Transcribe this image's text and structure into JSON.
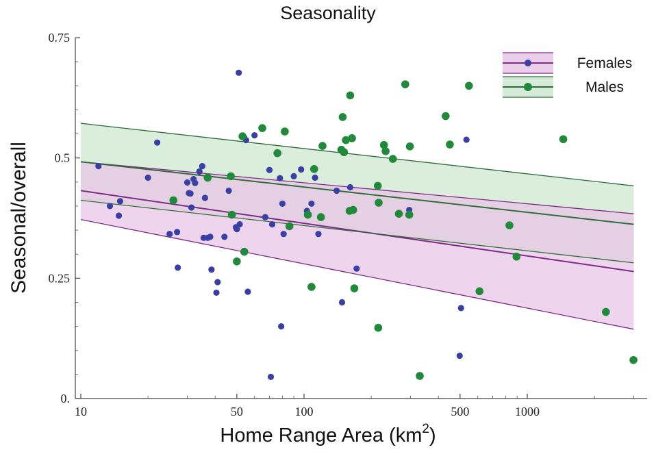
{
  "chart_data": {
    "type": "scatter",
    "title": "Seasonality",
    "xlabel": "Home Range Area (km",
    "xlabel_superscript": "2",
    "xlabel_suffix": ")",
    "ylabel": "Seasonal/overall",
    "xscale": "log",
    "xlim": [
      9,
      3000
    ],
    "ylim": [
      0,
      0.75
    ],
    "x_ticks": [
      10,
      50,
      100,
      500,
      1000
    ],
    "x_tick_labels": [
      "10",
      "50",
      "100",
      "500",
      "1000"
    ],
    "y_ticks": [
      0,
      0.25,
      0.5,
      0.75
    ],
    "y_tick_labels": [
      "0.",
      "0.25",
      "0.5",
      "0.75"
    ],
    "grid": false,
    "legend_position": "top-right",
    "series": [
      {
        "name": "Females",
        "color": "#3a3fa6",
        "line_color": "#7d2a86",
        "band_color": "#e8c6e6",
        "fit_x": [
          10,
          3000
        ],
        "fit_y": [
          0.432,
          0.264
        ],
        "band_upper": [
          0.492,
          0.384
        ],
        "band_lower": [
          0.372,
          0.144
        ],
        "points": [
          [
            12,
            0.483
          ],
          [
            13.5,
            0.4
          ],
          [
            14.8,
            0.38
          ],
          [
            15,
            0.41
          ],
          [
            20,
            0.459
          ],
          [
            22,
            0.532
          ],
          [
            25,
            0.342
          ],
          [
            27,
            0.346
          ],
          [
            27.2,
            0.272
          ],
          [
            30,
            0.449
          ],
          [
            30.5,
            0.427
          ],
          [
            31,
            0.426
          ],
          [
            31.3,
            0.397
          ],
          [
            32,
            0.456
          ],
          [
            32.5,
            0.448
          ],
          [
            34,
            0.472
          ],
          [
            35,
            0.483
          ],
          [
            35.5,
            0.334
          ],
          [
            36,
            0.417
          ],
          [
            37,
            0.334
          ],
          [
            38.5,
            0.268
          ],
          [
            38,
            0.336
          ],
          [
            41,
            0.242
          ],
          [
            40.5,
            0.22
          ],
          [
            44,
            0.336
          ],
          [
            46,
            0.432
          ],
          [
            49.5,
            0.356
          ],
          [
            50,
            0.352
          ],
          [
            51,
            0.677
          ],
          [
            51.5,
            0.362
          ],
          [
            54,
            0.542
          ],
          [
            55,
            0.537
          ],
          [
            56,
            0.222
          ],
          [
            60,
            0.547
          ],
          [
            67,
            0.377
          ],
          [
            70,
            0.475
          ],
          [
            71,
            0.045
          ],
          [
            72,
            0.362
          ],
          [
            78,
            0.458
          ],
          [
            79,
            0.15
          ],
          [
            80,
            0.405
          ],
          [
            81,
            0.342
          ],
          [
            90,
            0.462
          ],
          [
            97,
            0.476
          ],
          [
            103,
            0.39
          ],
          [
            108,
            0.405
          ],
          [
            112,
            0.459
          ],
          [
            116,
            0.342
          ],
          [
            140,
            0.432
          ],
          [
            148,
            0.2
          ],
          [
            161,
            0.439
          ],
          [
            172,
            0.27
          ],
          [
            296,
            0.392
          ],
          [
            498,
            0.089
          ],
          [
            505,
            0.188
          ],
          [
            534,
            0.538
          ]
        ]
      },
      {
        "name": "Males",
        "color": "#1e8a3a",
        "line_color": "#2f6b3a",
        "band_color": "#cfe8d0",
        "fit_x": [
          10,
          3000
        ],
        "fit_y": [
          0.492,
          0.362
        ],
        "band_upper": [
          0.572,
          0.442
        ],
        "band_lower": [
          0.412,
          0.282
        ],
        "points": [
          [
            26,
            0.412
          ],
          [
            37,
            0.459
          ],
          [
            47,
            0.462
          ],
          [
            47.5,
            0.382
          ],
          [
            50,
            0.285
          ],
          [
            53,
            0.545
          ],
          [
            54,
            0.305
          ],
          [
            65,
            0.562
          ],
          [
            76,
            0.51
          ],
          [
            82,
            0.555
          ],
          [
            86,
            0.358
          ],
          [
            104,
            0.382
          ],
          [
            108,
            0.232
          ],
          [
            111,
            0.477
          ],
          [
            119,
            0.377
          ],
          [
            121,
            0.525
          ],
          [
            147,
            0.517
          ],
          [
            149,
            0.585
          ],
          [
            151,
            0.512
          ],
          [
            154,
            0.537
          ],
          [
            160,
            0.39
          ],
          [
            161,
            0.63
          ],
          [
            164,
            0.541
          ],
          [
            166,
            0.392
          ],
          [
            168,
            0.229
          ],
          [
            214,
            0.442
          ],
          [
            216,
            0.407
          ],
          [
            215,
            0.147
          ],
          [
            228,
            0.527
          ],
          [
            232,
            0.514
          ],
          [
            250,
            0.498
          ],
          [
            266,
            0.384
          ],
          [
            284,
            0.653
          ],
          [
            296,
            0.382
          ],
          [
            298,
            0.524
          ],
          [
            330,
            0.047
          ],
          [
            431,
            0.587
          ],
          [
            450,
            0.528
          ],
          [
            548,
            0.65
          ],
          [
            611,
            0.223
          ],
          [
            832,
            0.36
          ],
          [
            895,
            0.295
          ],
          [
            1450,
            0.539
          ],
          [
            2250,
            0.18
          ],
          [
            2990,
            0.08
          ]
        ]
      }
    ]
  }
}
